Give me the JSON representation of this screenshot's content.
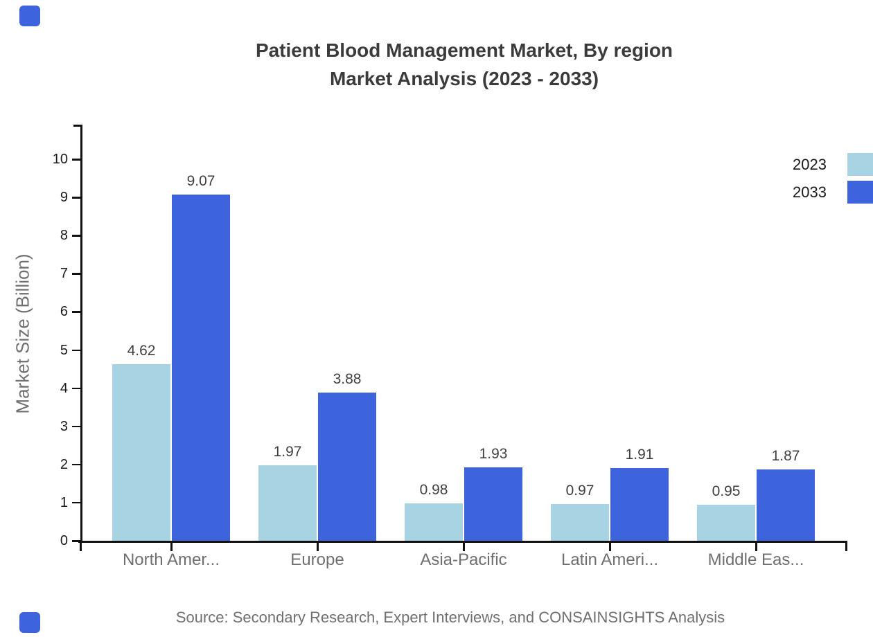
{
  "title": {
    "line1": "Patient Blood Management Market, By region",
    "line2": "Market Analysis (2023 - 2033)"
  },
  "y_axis": {
    "label": "Market Size (Billion)",
    "tick_values": [
      0,
      1,
      2,
      3,
      4,
      5,
      6,
      7,
      8,
      9,
      10
    ]
  },
  "legend": {
    "items": [
      {
        "label": "2023",
        "color": "#a8d3e3"
      },
      {
        "label": "2033",
        "color": "#3d64dc"
      }
    ]
  },
  "source_note": "Source: Secondary Research, Expert Interviews, and CONSAINSIGHTS Analysis",
  "branding": {
    "corner_square_color": "#3d64dc"
  },
  "chart_data": {
    "type": "bar",
    "title": "Patient Blood Management Market, By region Market Analysis (2023 - 2033)",
    "categories": [
      "North Amer...",
      "Europe",
      "Asia-Pacific",
      "Latin Ameri...",
      "Middle Eas..."
    ],
    "series": [
      {
        "name": "2023",
        "color": "#a8d3e3",
        "values": [
          4.62,
          1.97,
          0.98,
          0.97,
          0.95
        ]
      },
      {
        "name": "2033",
        "color": "#3d64dc",
        "values": [
          9.07,
          3.88,
          1.93,
          1.91,
          1.87
        ]
      }
    ],
    "xlabel": "",
    "ylabel": "Market Size (Billion)",
    "ylim": [
      0,
      10
    ],
    "grid": false,
    "legend_position": "top-right",
    "value_labels": true
  }
}
